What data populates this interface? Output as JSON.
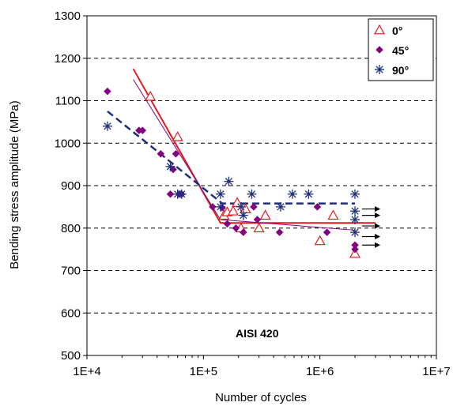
{
  "chart_data": {
    "type": "scatter",
    "title": "",
    "xlabel": "Number of cycles",
    "ylabel": "Bending stress amplitude (MPa)",
    "xscale": "log",
    "xlim": [
      10000,
      10000000
    ],
    "ylim": [
      500,
      1300
    ],
    "x_ticks": [
      10000,
      100000,
      1000000,
      10000000
    ],
    "x_tick_labels": [
      "1E+4",
      "1E+5",
      "1E+6",
      "1E+7"
    ],
    "y_ticks": [
      500,
      600,
      700,
      800,
      900,
      1000,
      1100,
      1200,
      1300
    ],
    "y_tick_labels": [
      "500",
      "600",
      "700",
      "800",
      "900",
      "1000",
      "1100",
      "1200",
      "1300"
    ],
    "grid": "horizontal dashed",
    "legend_position": "top-right",
    "annotation": "AISI 420",
    "colors": {
      "s0": "#e41a1c",
      "s45": "#800080",
      "s90": "#1f2f7a"
    },
    "series": [
      {
        "name": "0°",
        "marker": "triangle-open",
        "color": "#e41a1c",
        "points": [
          [
            35000,
            1110
          ],
          [
            60000,
            1015
          ],
          [
            150000,
            830
          ],
          [
            160000,
            838
          ],
          [
            180000,
            840
          ],
          [
            195000,
            860
          ],
          [
            210000,
            800
          ],
          [
            230000,
            845
          ],
          [
            300000,
            800
          ],
          [
            340000,
            830
          ],
          [
            1000000,
            770
          ],
          [
            1300000,
            830
          ],
          [
            2000000,
            740
          ]
        ],
        "fit": [
          [
            25000,
            1175
          ],
          [
            140000,
            812
          ],
          [
            3000000,
            812
          ]
        ]
      },
      {
        "name": "45°",
        "marker": "diamond",
        "color": "#800080",
        "points": [
          [
            15000,
            1122
          ],
          [
            28000,
            1030
          ],
          [
            30000,
            1030
          ],
          [
            43000,
            975
          ],
          [
            52000,
            880
          ],
          [
            55000,
            938
          ],
          [
            58000,
            975
          ],
          [
            62000,
            880
          ],
          [
            65000,
            880
          ],
          [
            120000,
            850
          ],
          [
            145000,
            848
          ],
          [
            160000,
            810
          ],
          [
            190000,
            800
          ],
          [
            220000,
            790
          ],
          [
            270000,
            850
          ],
          [
            290000,
            820
          ],
          [
            450000,
            790
          ],
          [
            950000,
            850
          ],
          [
            1150000,
            790
          ],
          [
            2000000,
            760
          ],
          [
            2000000,
            750
          ]
        ],
        "fit": [
          [
            25000,
            1150
          ],
          [
            140000,
            820
          ],
          [
            2000000,
            795
          ]
        ]
      },
      {
        "name": "90°",
        "marker": "asterisk",
        "color": "#1f2f7a",
        "points": [
          [
            15000,
            1040
          ],
          [
            52000,
            945
          ],
          [
            60000,
            880
          ],
          [
            65000,
            880
          ],
          [
            140000,
            880
          ],
          [
            140000,
            850
          ],
          [
            165000,
            910
          ],
          [
            210000,
            850
          ],
          [
            220000,
            830
          ],
          [
            260000,
            880
          ],
          [
            460000,
            850
          ],
          [
            580000,
            880
          ],
          [
            800000,
            880
          ],
          [
            2000000,
            880
          ],
          [
            2000000,
            840
          ],
          [
            2000000,
            820
          ],
          [
            2000000,
            790
          ]
        ],
        "fit": [
          [
            15000,
            1075
          ],
          [
            145000,
            858
          ],
          [
            2000000,
            858
          ]
        ]
      }
    ],
    "runout_arrows_y": [
      845,
      830,
      805,
      780,
      760
    ]
  }
}
